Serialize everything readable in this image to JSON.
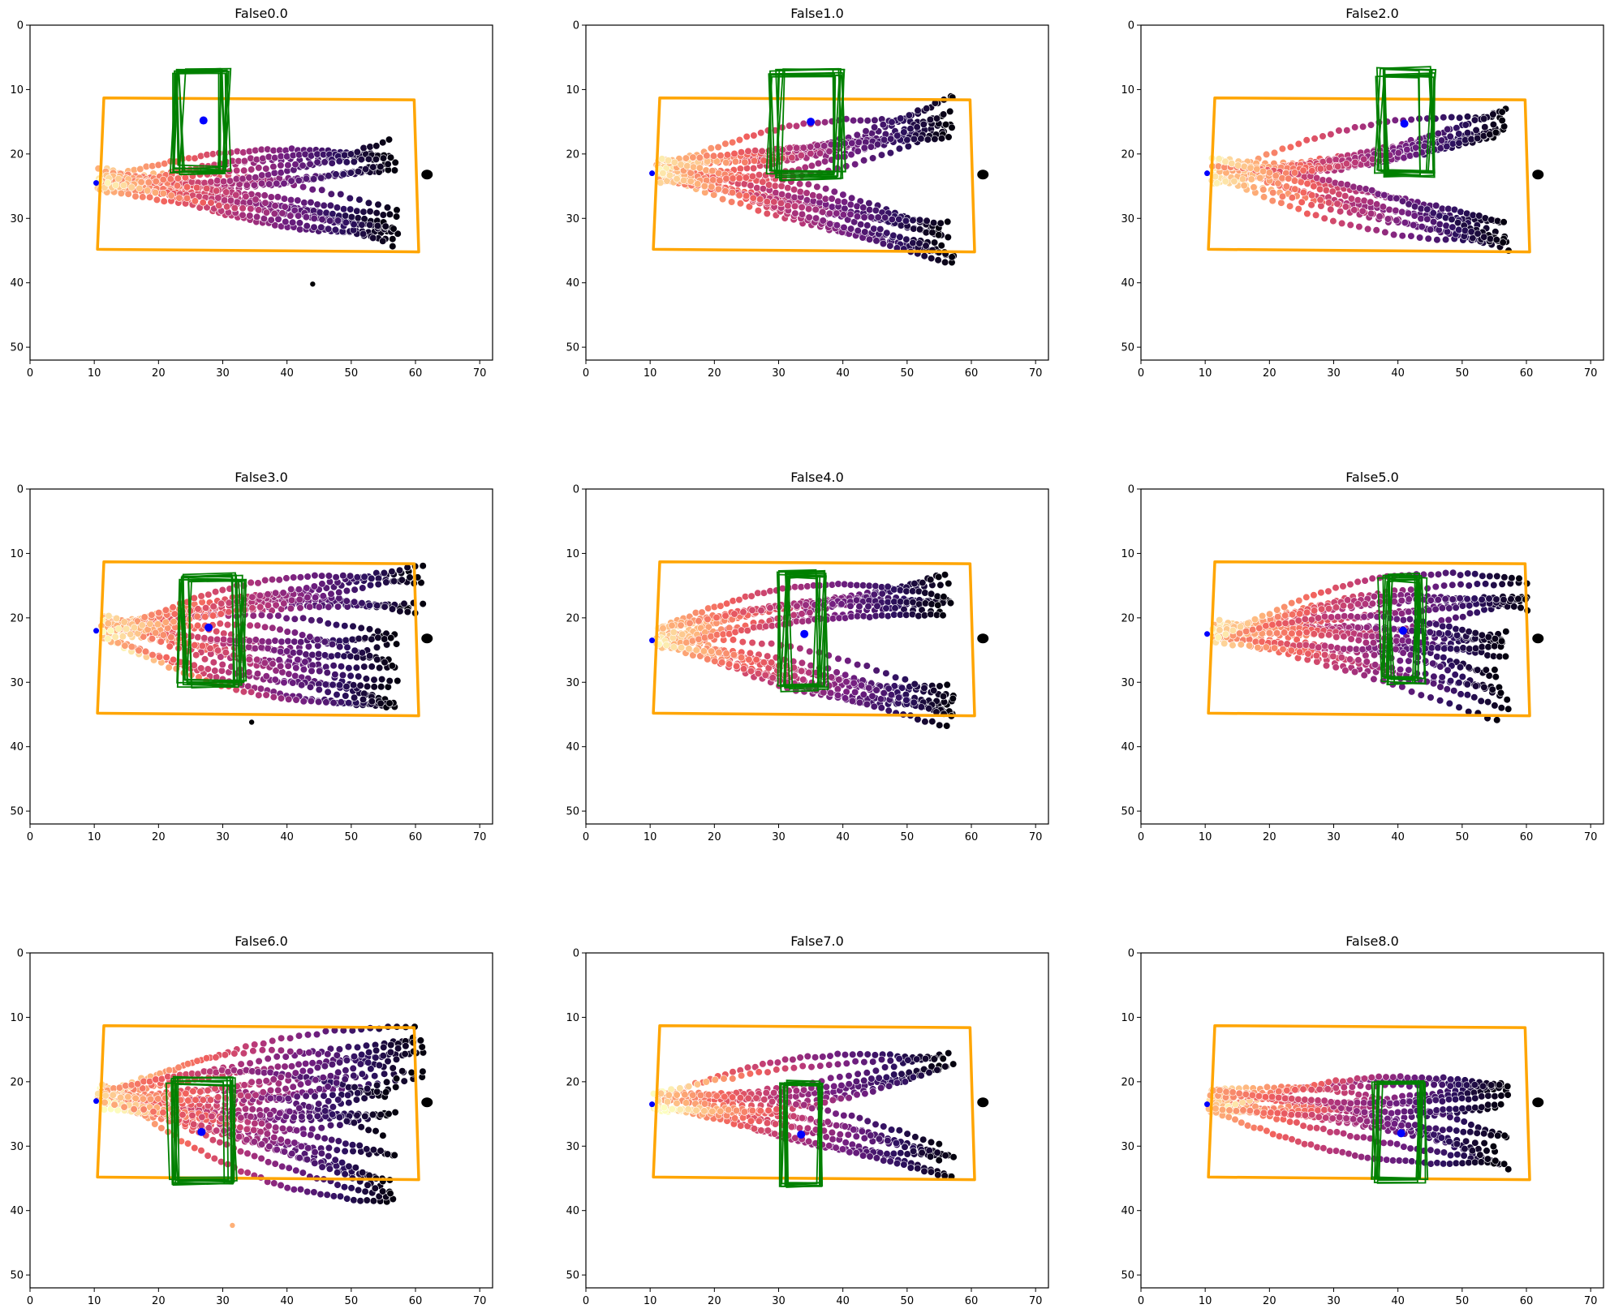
{
  "figure": {
    "layout": "3x3 grid of scatter plots"
  },
  "colors": {
    "field_outline": "#ffa500",
    "player_boxes": "#008000",
    "ball": "#0000ff",
    "goal": "#000000",
    "trail_palette": [
      "#000004",
      "#2c115f",
      "#721f81",
      "#b73779",
      "#f1605d",
      "#feb078",
      "#fcfdbf"
    ]
  },
  "chart_data": [
    {
      "type": "scatter",
      "title": "False0.0",
      "xlim": [
        0,
        72
      ],
      "ylim": [
        52,
        0
      ],
      "xticks": [
        0,
        10,
        20,
        30,
        40,
        50,
        60,
        70
      ],
      "yticks": [
        0,
        10,
        20,
        30,
        40,
        50
      ],
      "field": [
        [
          11.5,
          11.3
        ],
        [
          59.8,
          11.6
        ],
        [
          60.5,
          35.2
        ],
        [
          10.5,
          34.8
        ]
      ],
      "trail": {
        "start": [
          10.5,
          24.0
        ],
        "goals": [
          [
            56,
            20.5
          ],
          [
            56,
            31.5
          ]
        ],
        "spread": 5.5,
        "lateral": 3.0,
        "n_paths": 18,
        "stray": [
          [
            44,
            40.2
          ]
        ]
      },
      "ball": [
        27,
        14.8
      ],
      "goal_marker": [
        61.8,
        23.2
      ],
      "boxes": {
        "x": [
          22.5,
          30.5
        ],
        "y": [
          7.0,
          22.8
        ],
        "count": 10,
        "jitter": 1.2
      }
    },
    {
      "type": "scatter",
      "title": "False1.0",
      "xlim": [
        0,
        72
      ],
      "ylim": [
        52,
        0
      ],
      "xticks": [
        0,
        10,
        20,
        30,
        40,
        50,
        60,
        70
      ],
      "yticks": [
        0,
        10,
        20,
        30,
        40,
        50
      ],
      "field": [
        [
          11.5,
          11.3
        ],
        [
          59.8,
          11.6
        ],
        [
          60.5,
          35.2
        ],
        [
          10.5,
          34.8
        ]
      ],
      "trail": {
        "start": [
          11,
          22.5
        ],
        "goals": [
          [
            56,
            14.0
          ],
          [
            56,
            33.5
          ]
        ],
        "spread": 7.0,
        "lateral": 3.5,
        "n_paths": 20,
        "stray": []
      },
      "ball": [
        35,
        15.0
      ],
      "goal_marker": [
        61.8,
        23.2
      ],
      "boxes": {
        "x": [
          29.0,
          40.0
        ],
        "y": [
          7.0,
          23.5
        ],
        "count": 10,
        "jitter": 1.5
      }
    },
    {
      "type": "scatter",
      "title": "False2.0",
      "xlim": [
        0,
        72
      ],
      "ylim": [
        52,
        0
      ],
      "xticks": [
        0,
        10,
        20,
        30,
        40,
        50,
        60,
        70
      ],
      "yticks": [
        0,
        10,
        20,
        30,
        40,
        50
      ],
      "field": [
        [
          11.5,
          11.3
        ],
        [
          59.8,
          11.6
        ],
        [
          60.5,
          35.2
        ],
        [
          10.5,
          34.8
        ]
      ],
      "trail": {
        "start": [
          11,
          22.5
        ],
        "goals": [
          [
            56,
            14.5
          ],
          [
            56,
            32.5
          ]
        ],
        "spread": 6.0,
        "lateral": 3.5,
        "n_paths": 18,
        "stray": []
      },
      "ball": [
        41,
        15.3
      ],
      "goal_marker": [
        61.8,
        23.2
      ],
      "boxes": {
        "x": [
          37.0,
          45.0
        ],
        "y": [
          7.0,
          23.5
        ],
        "count": 10,
        "jitter": 1.5
      }
    },
    {
      "type": "scatter",
      "title": "False3.0",
      "xlim": [
        0,
        72
      ],
      "ylim": [
        52,
        0
      ],
      "xticks": [
        0,
        10,
        20,
        30,
        40,
        50,
        60,
        70
      ],
      "yticks": [
        0,
        10,
        20,
        30,
        40,
        50
      ],
      "field": [
        [
          11.5,
          11.3
        ],
        [
          59.8,
          11.6
        ],
        [
          60.5,
          35.2
        ],
        [
          10.5,
          34.8
        ]
      ],
      "trail": {
        "start": [
          11,
          21.5
        ],
        "goals": [
          [
            60,
            15.5
          ],
          [
            56,
            24
          ],
          [
            56,
            33
          ]
        ],
        "spread": 8.0,
        "lateral": 4.5,
        "n_paths": 22,
        "stray": [
          [
            34.5,
            36.2
          ]
        ]
      },
      "ball": [
        27.8,
        21.5
      ],
      "goal_marker": [
        61.8,
        23.2
      ],
      "boxes": {
        "x": [
          23.5,
          33.0
        ],
        "y": [
          13.5,
          30.5
        ],
        "count": 10,
        "jitter": 1.3
      }
    },
    {
      "type": "scatter",
      "title": "False4.0",
      "xlim": [
        0,
        72
      ],
      "ylim": [
        52,
        0
      ],
      "xticks": [
        0,
        10,
        20,
        30,
        40,
        50,
        60,
        70
      ],
      "yticks": [
        0,
        10,
        20,
        30,
        40,
        50
      ],
      "field": [
        [
          11.5,
          11.3
        ],
        [
          59.8,
          11.6
        ],
        [
          60.5,
          35.2
        ],
        [
          10.5,
          34.8
        ]
      ],
      "trail": {
        "start": [
          11,
          23.0
        ],
        "goals": [
          [
            56,
            16.5
          ],
          [
            56,
            33.5
          ]
        ],
        "spread": 7.0,
        "lateral": 4.0,
        "n_paths": 20,
        "stray": []
      },
      "ball": [
        34,
        22.5
      ],
      "goal_marker": [
        61.8,
        23.2
      ],
      "boxes": {
        "x": [
          30.5,
          37.0
        ],
        "y": [
          13.0,
          31.0
        ],
        "count": 10,
        "jitter": 1.2
      }
    },
    {
      "type": "scatter",
      "title": "False5.0",
      "xlim": [
        0,
        72
      ],
      "ylim": [
        52,
        0
      ],
      "xticks": [
        0,
        10,
        20,
        30,
        40,
        50,
        60,
        70
      ],
      "yticks": [
        0,
        10,
        20,
        30,
        40,
        50
      ],
      "field": [
        [
          11.5,
          11.3
        ],
        [
          59.8,
          11.6
        ],
        [
          60.5,
          35.2
        ],
        [
          10.5,
          34.8
        ]
      ],
      "trail": {
        "start": [
          11,
          22.0
        ],
        "goals": [
          [
            60,
            16.0
          ],
          [
            56,
            24
          ],
          [
            56,
            32
          ]
        ],
        "spread": 9.0,
        "lateral": 4.5,
        "n_paths": 22,
        "stray": []
      },
      "ball": [
        40.8,
        22.0
      ],
      "goal_marker": [
        61.8,
        23.2
      ],
      "boxes": {
        "x": [
          37.5,
          44.0
        ],
        "y": [
          13.5,
          30.0
        ],
        "count": 10,
        "jitter": 1.3
      }
    },
    {
      "type": "scatter",
      "title": "False6.0",
      "xlim": [
        0,
        72
      ],
      "ylim": [
        52,
        0
      ],
      "xticks": [
        0,
        10,
        20,
        30,
        40,
        50,
        60,
        70
      ],
      "yticks": [
        0,
        10,
        20,
        30,
        40,
        50
      ],
      "field": [
        [
          11.5,
          11.3
        ],
        [
          59.8,
          11.6
        ],
        [
          60.5,
          35.2
        ],
        [
          10.5,
          34.8
        ]
      ],
      "trail": {
        "start": [
          10.5,
          22.5
        ],
        "goals": [
          [
            60,
            15.0
          ],
          [
            56,
            24
          ],
          [
            56,
            34.5
          ]
        ],
        "spread": 9.0,
        "lateral": 5.0,
        "n_paths": 26,
        "stray": [
          [
            31.5,
            42.3
          ]
        ]
      },
      "ball": [
        26.7,
        27.8
      ],
      "goal_marker": [
        61.8,
        23.2
      ],
      "boxes": {
        "x": [
          22.0,
          31.5
        ],
        "y": [
          19.5,
          35.5
        ],
        "count": 10,
        "jitter": 1.3
      }
    },
    {
      "type": "scatter",
      "title": "False7.0",
      "xlim": [
        0,
        72
      ],
      "ylim": [
        52,
        0
      ],
      "xticks": [
        0,
        10,
        20,
        30,
        40,
        50,
        60,
        70
      ],
      "yticks": [
        0,
        10,
        20,
        30,
        40,
        50
      ],
      "field": [
        [
          11.5,
          11.3
        ],
        [
          59.8,
          11.6
        ],
        [
          60.5,
          35.2
        ],
        [
          10.5,
          34.8
        ]
      ],
      "trail": {
        "start": [
          10.5,
          23.0
        ],
        "goals": [
          [
            56,
            18.5
          ],
          [
            56,
            32.5
          ]
        ],
        "spread": 6.5,
        "lateral": 3.5,
        "n_paths": 14,
        "stray": []
      },
      "ball": [
        33.5,
        28.2
      ],
      "goal_marker": [
        61.8,
        23.2
      ],
      "boxes": {
        "x": [
          30.5,
          36.5
        ],
        "y": [
          20.0,
          36.0
        ],
        "count": 8,
        "jitter": 0.8
      }
    },
    {
      "type": "scatter",
      "title": "False8.0",
      "xlim": [
        0,
        72
      ],
      "ylim": [
        52,
        0
      ],
      "xticks": [
        0,
        10,
        20,
        30,
        40,
        50,
        60,
        70
      ],
      "yticks": [
        0,
        10,
        20,
        30,
        40,
        50
      ],
      "field": [
        [
          11.5,
          11.3
        ],
        [
          59.8,
          11.6
        ],
        [
          60.5,
          35.2
        ],
        [
          10.5,
          34.8
        ]
      ],
      "trail": {
        "start": [
          10.5,
          23.0
        ],
        "goals": [
          [
            56,
            22.5
          ],
          [
            56,
            31.0
          ]
        ],
        "spread": 6.0,
        "lateral": 3.0,
        "n_paths": 16,
        "stray": []
      },
      "ball": [
        40.5,
        28.0
      ],
      "goal_marker": [
        61.8,
        23.2
      ],
      "boxes": {
        "x": [
          36.5,
          44.0
        ],
        "y": [
          20.0,
          35.5
        ],
        "count": 8,
        "jitter": 0.8
      }
    }
  ]
}
